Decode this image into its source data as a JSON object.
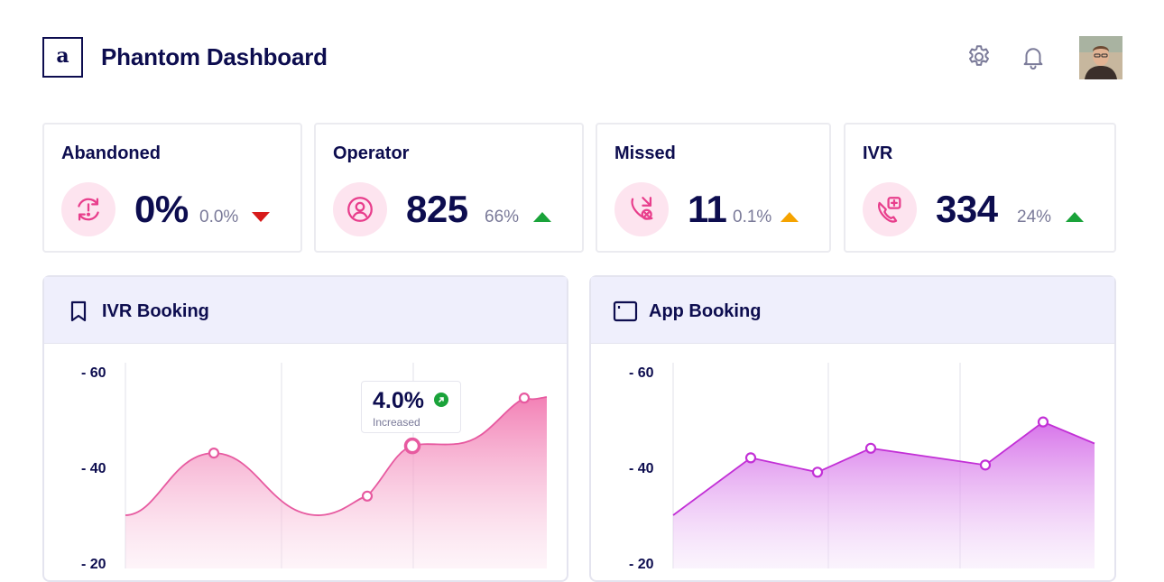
{
  "header": {
    "logo_text": "a",
    "title": "Phantom Dashboard",
    "icons": [
      "gear-icon",
      "bell-icon",
      "avatar"
    ]
  },
  "stats": [
    {
      "title": "Abandoned",
      "value": "0%",
      "pct": "0.0%",
      "trend": "down",
      "trend_color": "#d71b1b",
      "icon": "timer-alert-icon"
    },
    {
      "title": "Operator",
      "value": "825",
      "pct": "66%",
      "trend": "up",
      "trend_color": "#1aa33a",
      "icon": "operator-icon"
    },
    {
      "title": "Missed",
      "value": "11",
      "pct": "0.1%",
      "trend": "up",
      "trend_color": "#f5a300",
      "icon": "missed-call-icon"
    },
    {
      "title": "IVR",
      "value": "334",
      "pct": "24%",
      "trend": "up",
      "trend_color": "#1aa33a",
      "icon": "ivr-icon"
    }
  ],
  "panels": {
    "ivr": {
      "title": "IVR Booking",
      "icon": "bookmark-icon",
      "tooltip": {
        "value": "4.0%",
        "label": "Increased",
        "badge_color": "#1aa33a"
      }
    },
    "app": {
      "title": "App Booking",
      "icon": "window-icon"
    }
  },
  "chart_data": [
    {
      "type": "area",
      "title": "IVR Booking",
      "y_tick_labels": [
        "- 60",
        "- 40",
        "- 20"
      ],
      "y_ticks": [
        60,
        40,
        20
      ],
      "ylim": [
        20,
        60
      ],
      "series": [
        {
          "values": [
            30,
            43,
            34,
            44.5,
            54.5
          ],
          "marker_values": [
            43,
            34,
            44.5,
            54.5
          ],
          "highlight": 44.5
        }
      ],
      "color": "#e75aa0",
      "grid": true
    },
    {
      "type": "area",
      "title": "App Booking",
      "y_tick_labels": [
        "- 60",
        "- 40",
        "- 20"
      ],
      "y_ticks": [
        60,
        40,
        20
      ],
      "ylim": [
        20,
        60
      ],
      "series": [
        {
          "values": [
            30,
            42,
            39,
            44,
            40.5,
            49.5,
            45
          ]
        }
      ],
      "color": "#c22fd6",
      "grid": true
    }
  ]
}
